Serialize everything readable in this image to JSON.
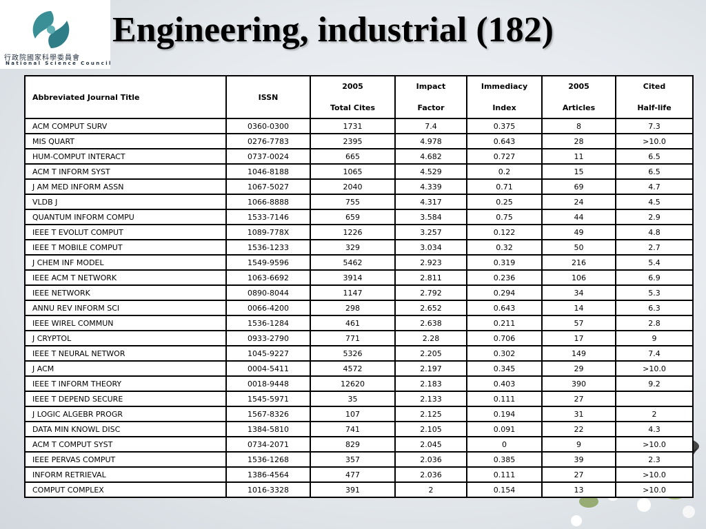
{
  "slide": {
    "title": "Engineering, industrial (182)",
    "logo": {
      "chinese": "行政院國家科學委員會",
      "english": "National Science Council"
    }
  },
  "table": {
    "headers": [
      {
        "line1": "Abbreviated Journal Title",
        "line2": ""
      },
      {
        "line1": "ISSN",
        "line2": ""
      },
      {
        "line1": "2005",
        "line2": "Total Cites"
      },
      {
        "line1": "Impact",
        "line2": "Factor"
      },
      {
        "line1": "Immediacy",
        "line2": "Index"
      },
      {
        "line1": "2005",
        "line2": "Articles"
      },
      {
        "line1": "Cited",
        "line2": "Half-life"
      }
    ],
    "rows": [
      [
        "ACM COMPUT SURV",
        "0360-0300",
        "1731",
        "7.4",
        "0.375",
        "8",
        "7.3"
      ],
      [
        "MIS QUART",
        "0276-7783",
        "2395",
        "4.978",
        "0.643",
        "28",
        ">10.0"
      ],
      [
        "HUM-COMPUT INTERACT",
        "0737-0024",
        "665",
        "4.682",
        "0.727",
        "11",
        "6.5"
      ],
      [
        "ACM T INFORM SYST",
        "1046-8188",
        "1065",
        "4.529",
        "0.2",
        "15",
        "6.5"
      ],
      [
        "J AM MED INFORM ASSN",
        "1067-5027",
        "2040",
        "4.339",
        "0.71",
        "69",
        "4.7"
      ],
      [
        "VLDB J",
        "1066-8888",
        "755",
        "4.317",
        "0.25",
        "24",
        "4.5"
      ],
      [
        "QUANTUM INFORM COMPU",
        "1533-7146",
        "659",
        "3.584",
        "0.75",
        "44",
        "2.9"
      ],
      [
        "IEEE T EVOLUT COMPUT",
        "1089-778X",
        "1226",
        "3.257",
        "0.122",
        "49",
        "4.8"
      ],
      [
        "IEEE T MOBILE COMPUT",
        "1536-1233",
        "329",
        "3.034",
        "0.32",
        "50",
        "2.7"
      ],
      [
        "J CHEM INF MODEL",
        "1549-9596",
        "5462",
        "2.923",
        "0.319",
        "216",
        "5.4"
      ],
      [
        "IEEE ACM T NETWORK",
        "1063-6692",
        "3914",
        "2.811",
        "0.236",
        "106",
        "6.9"
      ],
      [
        "IEEE NETWORK",
        "0890-8044",
        "1147",
        "2.792",
        "0.294",
        "34",
        "5.3"
      ],
      [
        "ANNU REV INFORM SCI",
        "0066-4200",
        "298",
        "2.652",
        "0.643",
        "14",
        "6.3"
      ],
      [
        "IEEE WIREL COMMUN",
        "1536-1284",
        "461",
        "2.638",
        "0.211",
        "57",
        "2.8"
      ],
      [
        "J CRYPTOL",
        "0933-2790",
        "771",
        "2.28",
        "0.706",
        "17",
        "9"
      ],
      [
        "IEEE T NEURAL NETWOR",
        "1045-9227",
        "5326",
        "2.205",
        "0.302",
        "149",
        "7.4"
      ],
      [
        "J ACM",
        "0004-5411",
        "4572",
        "2.197",
        "0.345",
        "29",
        ">10.0"
      ],
      [
        "IEEE T INFORM THEORY",
        "0018-9448",
        "12620",
        "2.183",
        "0.403",
        "390",
        "9.2"
      ],
      [
        "IEEE T DEPEND SECURE",
        "1545-5971",
        "35",
        "2.133",
        "0.111",
        "27",
        ""
      ],
      [
        "J LOGIC ALGEBR PROGR",
        "1567-8326",
        "107",
        "2.125",
        "0.194",
        "31",
        "2"
      ],
      [
        "DATA MIN KNOWL DISC",
        "1384-5810",
        "741",
        "2.105",
        "0.091",
        "22",
        "4.3"
      ],
      [
        "ACM T COMPUT SYST",
        "0734-2071",
        "829",
        "2.045",
        "0",
        "9",
        ">10.0"
      ],
      [
        "IEEE PERVAS COMPUT",
        "1536-1268",
        "357",
        "2.036",
        "0.385",
        "39",
        "2.3"
      ],
      [
        "INFORM RETRIEVAL",
        "1386-4564",
        "477",
        "2.036",
        "0.111",
        "27",
        ">10.0"
      ],
      [
        "COMPUT COMPLEX",
        "1016-3328",
        "391",
        "2",
        "0.154",
        "13",
        ">10.0"
      ]
    ]
  }
}
